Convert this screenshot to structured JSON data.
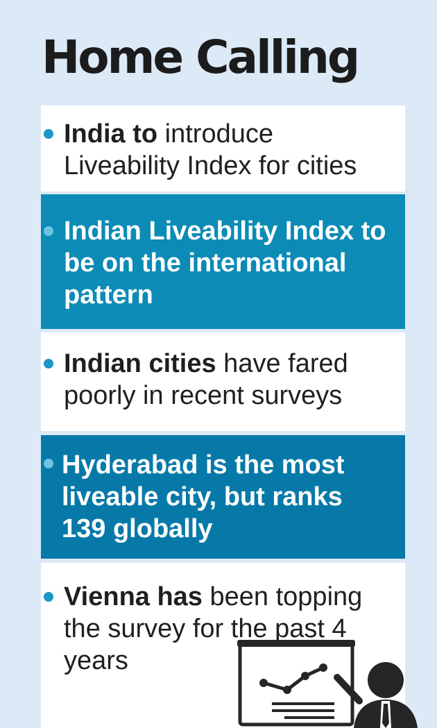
{
  "title": "Home Calling",
  "items": [
    {
      "bold": "India to",
      "rest": " introduce Liveability Index for cities"
    },
    {
      "bold": "Indian Liveability Index to be on the international pattern",
      "rest": ""
    },
    {
      "bold": "Indian cities",
      "rest": " have fared poorly in recent surveys"
    },
    {
      "bold": "Hyderabad is the most liveable city, but ranks 139 globally",
      "rest": ""
    },
    {
      "bold": "Vienna has",
      "rest": " been topping the survey for the past 4 years"
    }
  ],
  "colors": {
    "background": "#dce9f6",
    "teal": "#0b8bb6",
    "dark_teal": "#0779a8",
    "bullet": "#1a97c5"
  },
  "illustration": "presenter-with-chart-board-icon"
}
